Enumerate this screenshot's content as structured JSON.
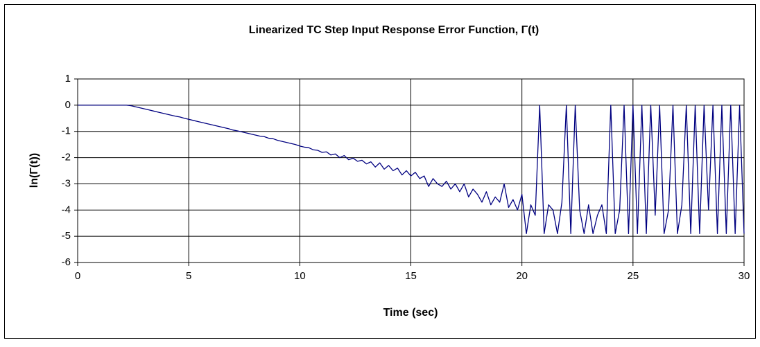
{
  "chart_data": {
    "type": "line",
    "title": "Linearized TC Step Input Response Error Function, Γ(t)",
    "xlabel": "Time (sec)",
    "ylabel": "ln(Γ(t))",
    "color": "#000080",
    "grid": true,
    "xlim": [
      0,
      30
    ],
    "ylim": [
      -6,
      1
    ],
    "xticks": [
      0,
      5,
      10,
      15,
      20,
      25,
      30
    ],
    "yticks": [
      1,
      0,
      -1,
      -2,
      -3,
      -4,
      -5,
      -6
    ],
    "x": [
      0,
      0.2,
      0.4,
      0.6,
      0.8,
      1.0,
      1.2,
      1.4,
      1.6,
      1.8,
      2.0,
      2.2,
      2.4,
      2.6,
      2.8,
      3.0,
      3.2,
      3.4,
      3.6,
      3.8,
      4.0,
      4.2,
      4.4,
      4.6,
      4.8,
      5.0,
      5.2,
      5.4,
      5.6,
      5.8,
      6.0,
      6.2,
      6.4,
      6.6,
      6.8,
      7.0,
      7.2,
      7.4,
      7.6,
      7.8,
      8.0,
      8.2,
      8.4,
      8.6,
      8.8,
      9.0,
      9.2,
      9.4,
      9.6,
      9.8,
      10.0,
      10.2,
      10.4,
      10.6,
      10.8,
      11.0,
      11.2,
      11.4,
      11.6,
      11.8,
      12.0,
      12.2,
      12.4,
      12.6,
      12.8,
      13.0,
      13.2,
      13.4,
      13.6,
      13.8,
      14.0,
      14.2,
      14.4,
      14.6,
      14.8,
      15.0,
      15.2,
      15.4,
      15.6,
      15.8,
      16.0,
      16.2,
      16.4,
      16.6,
      16.8,
      17.0,
      17.2,
      17.4,
      17.6,
      17.8,
      18.0,
      18.2,
      18.4,
      18.6,
      18.8,
      19.0,
      19.2,
      19.4,
      19.6,
      19.8,
      20.0,
      20.2,
      20.4,
      20.6,
      20.8,
      21.0,
      21.2,
      21.4,
      21.6,
      21.8,
      22.0,
      22.2,
      22.4,
      22.6,
      22.8,
      23.0,
      23.2,
      23.4,
      23.6,
      23.8,
      24.0,
      24.2,
      24.4,
      24.6,
      24.8,
      25.0,
      25.2,
      25.4,
      25.6,
      25.8,
      26.0,
      26.2,
      26.4,
      26.6,
      26.8,
      27.0,
      27.2,
      27.4,
      27.6,
      27.8,
      28.0,
      28.2,
      28.4,
      28.6,
      28.8,
      29.0,
      29.2,
      29.4,
      29.6,
      29.8,
      30.0
    ],
    "values": [
      0,
      0,
      0,
      0,
      0,
      0,
      0,
      0,
      0,
      0,
      0,
      0,
      -0.02,
      -0.06,
      -0.1,
      -0.14,
      -0.18,
      -0.22,
      -0.26,
      -0.3,
      -0.34,
      -0.38,
      -0.42,
      -0.45,
      -0.5,
      -0.54,
      -0.58,
      -0.62,
      -0.66,
      -0.7,
      -0.74,
      -0.78,
      -0.82,
      -0.86,
      -0.9,
      -0.95,
      -0.98,
      -1.02,
      -1.06,
      -1.1,
      -1.14,
      -1.18,
      -1.2,
      -1.26,
      -1.28,
      -1.34,
      -1.38,
      -1.42,
      -1.46,
      -1.5,
      -1.56,
      -1.6,
      -1.62,
      -1.7,
      -1.72,
      -1.8,
      -1.78,
      -1.9,
      -1.86,
      -2.0,
      -1.92,
      -2.08,
      -2.02,
      -2.14,
      -2.1,
      -2.24,
      -2.16,
      -2.36,
      -2.2,
      -2.44,
      -2.3,
      -2.5,
      -2.4,
      -2.66,
      -2.5,
      -2.7,
      -2.56,
      -2.8,
      -2.7,
      -3.1,
      -2.8,
      -3.0,
      -3.1,
      -2.9,
      -3.2,
      -3.0,
      -3.3,
      -3.0,
      -3.5,
      -3.2,
      -3.4,
      -3.7,
      -3.3,
      -3.8,
      -3.5,
      -3.7,
      -3.0,
      -3.9,
      -3.6,
      -4.0,
      -3.4,
      -4.9,
      -3.8,
      -4.2,
      0,
      -4.9,
      -3.8,
      -4.0,
      -4.9,
      -3.7,
      0,
      -4.9,
      0,
      -4.0,
      -4.9,
      -3.8,
      -4.9,
      -4.2,
      -3.8,
      -4.9,
      0,
      -4.9,
      -4.0,
      0,
      -4.9,
      0,
      -4.9,
      0,
      -4.9,
      0,
      -4.2,
      0,
      -4.9,
      -4.0,
      0,
      -4.9,
      -3.8,
      0,
      -4.9,
      0,
      -4.9,
      0,
      -4.0,
      0,
      -4.9,
      0,
      -4.9,
      0,
      -4.9,
      0,
      -4.9
    ]
  }
}
